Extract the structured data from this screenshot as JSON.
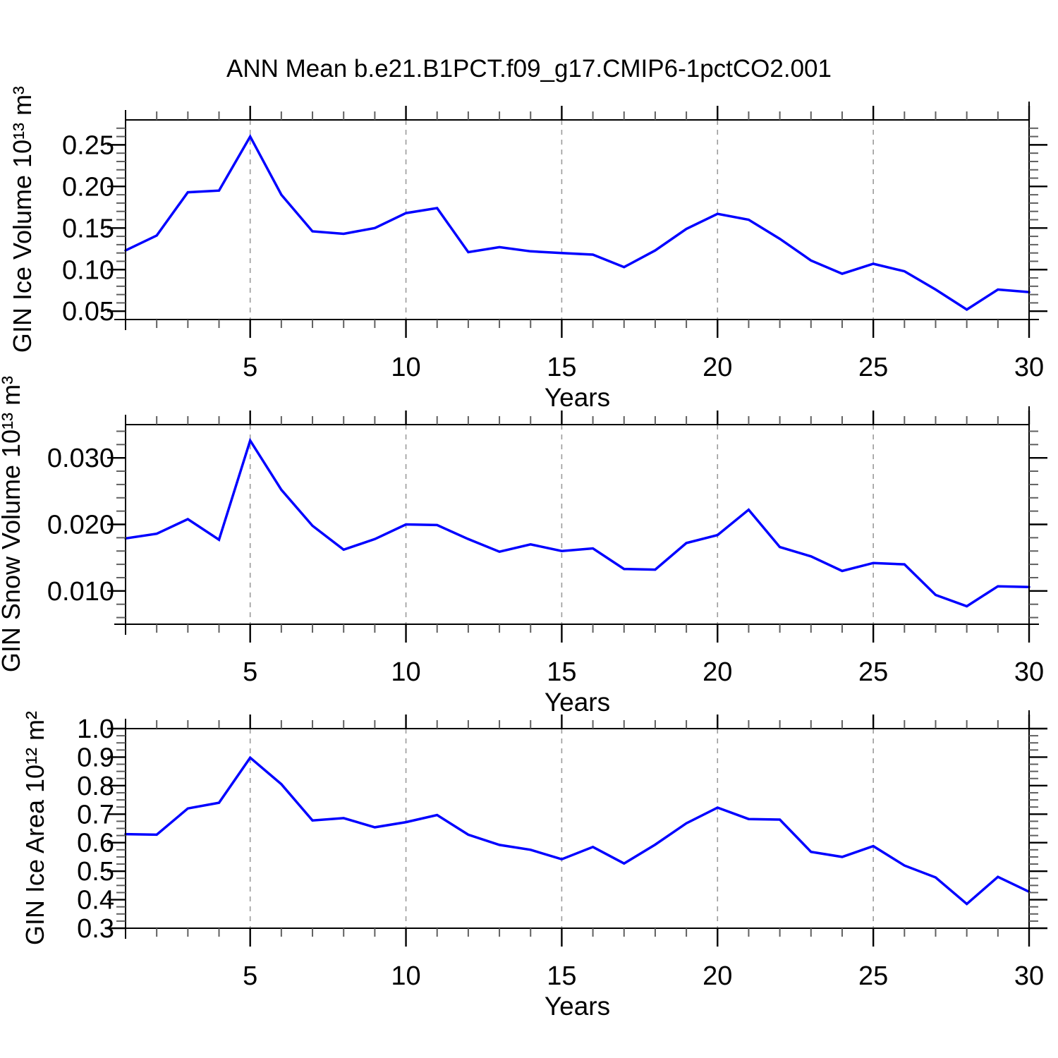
{
  "title": "ANN Mean b.e21.B1PCT.f09_g17.CMIP6-1pctCO2.001",
  "years": [
    1,
    2,
    3,
    4,
    5,
    6,
    7,
    8,
    9,
    10,
    11,
    12,
    13,
    14,
    15,
    16,
    17,
    18,
    19,
    20,
    21,
    22,
    23,
    24,
    25,
    26,
    27,
    28,
    29,
    30
  ],
  "colors": {
    "line": "#0000ff",
    "grid": "#9a9a9a",
    "axis": "#000000",
    "minor_tick": "#606060",
    "text": "#000000",
    "background": "#ffffff"
  },
  "chart_data": [
    {
      "type": "line",
      "name": "GIN Ice Volume",
      "ylabel": "GIN Ice Volume 10¹³ m³",
      "xlabel": "Years",
      "x_range": [
        1,
        30
      ],
      "ylim": [
        0.04,
        0.28
      ],
      "ytick_values": [
        0.05,
        0.1,
        0.15,
        0.2,
        0.25
      ],
      "ytick_labels": [
        "0.05",
        "0.10",
        "0.15",
        "0.20",
        "0.25"
      ],
      "y_minor_step": 0.01,
      "xticks": [
        5,
        10,
        15,
        20,
        25,
        30
      ],
      "x_minor_step": 1,
      "grid_x": [
        5,
        10,
        15,
        20,
        25
      ],
      "grid_on": true,
      "values": [
        0.123,
        0.141,
        0.193,
        0.195,
        0.26,
        0.19,
        0.146,
        0.143,
        0.15,
        0.168,
        0.174,
        0.121,
        0.127,
        0.122,
        0.12,
        0.118,
        0.103,
        0.123,
        0.149,
        0.167,
        0.16,
        0.137,
        0.111,
        0.095,
        0.107,
        0.098,
        0.076,
        0.052,
        0.076,
        0.073
      ]
    },
    {
      "type": "line",
      "name": "GIN Snow Volume",
      "ylabel": "GIN Snow Volume 10¹³ m³",
      "xlabel": "Years",
      "x_range": [
        1,
        30
      ],
      "ylim": [
        0.005,
        0.035
      ],
      "ytick_values": [
        0.01,
        0.02,
        0.03
      ],
      "ytick_labels": [
        "0.010",
        "0.020",
        "0.030"
      ],
      "y_minor_step": 0.002,
      "xticks": [
        5,
        10,
        15,
        20,
        25,
        30
      ],
      "x_minor_step": 1,
      "grid_x": [
        5,
        10,
        15,
        20,
        25
      ],
      "grid_on": true,
      "values": [
        0.0179,
        0.0186,
        0.0208,
        0.0177,
        0.0326,
        0.0252,
        0.0198,
        0.0162,
        0.0178,
        0.02,
        0.0199,
        0.0178,
        0.0159,
        0.017,
        0.016,
        0.0164,
        0.0133,
        0.0132,
        0.0172,
        0.0184,
        0.0222,
        0.0166,
        0.0152,
        0.013,
        0.0142,
        0.014,
        0.0094,
        0.0077,
        0.0107,
        0.0106
      ]
    },
    {
      "type": "line",
      "name": "GIN Ice Area",
      "ylabel": "GIN Ice Area 10¹² m²",
      "xlabel": "Years",
      "x_range": [
        1,
        30
      ],
      "ylim": [
        0.3,
        1.0
      ],
      "ytick_values": [
        0.3,
        0.4,
        0.5,
        0.6,
        0.7,
        0.8,
        0.9,
        1.0
      ],
      "ytick_labels": [
        "0.3",
        "0.4",
        "0.5",
        "0.6",
        "0.7",
        "0.8",
        "0.9",
        "1.0"
      ],
      "y_minor_step": 0.025,
      "xticks": [
        5,
        10,
        15,
        20,
        25,
        30
      ],
      "x_minor_step": 1,
      "grid_x": [
        5,
        10,
        15,
        20,
        25
      ],
      "grid_on": true,
      "values": [
        0.63,
        0.628,
        0.72,
        0.74,
        0.898,
        0.805,
        0.678,
        0.686,
        0.654,
        0.672,
        0.697,
        0.628,
        0.592,
        0.575,
        0.542,
        0.585,
        0.527,
        0.593,
        0.668,
        0.723,
        0.683,
        0.681,
        0.568,
        0.55,
        0.588,
        0.52,
        0.478,
        0.385,
        0.48,
        0.428
      ]
    }
  ]
}
